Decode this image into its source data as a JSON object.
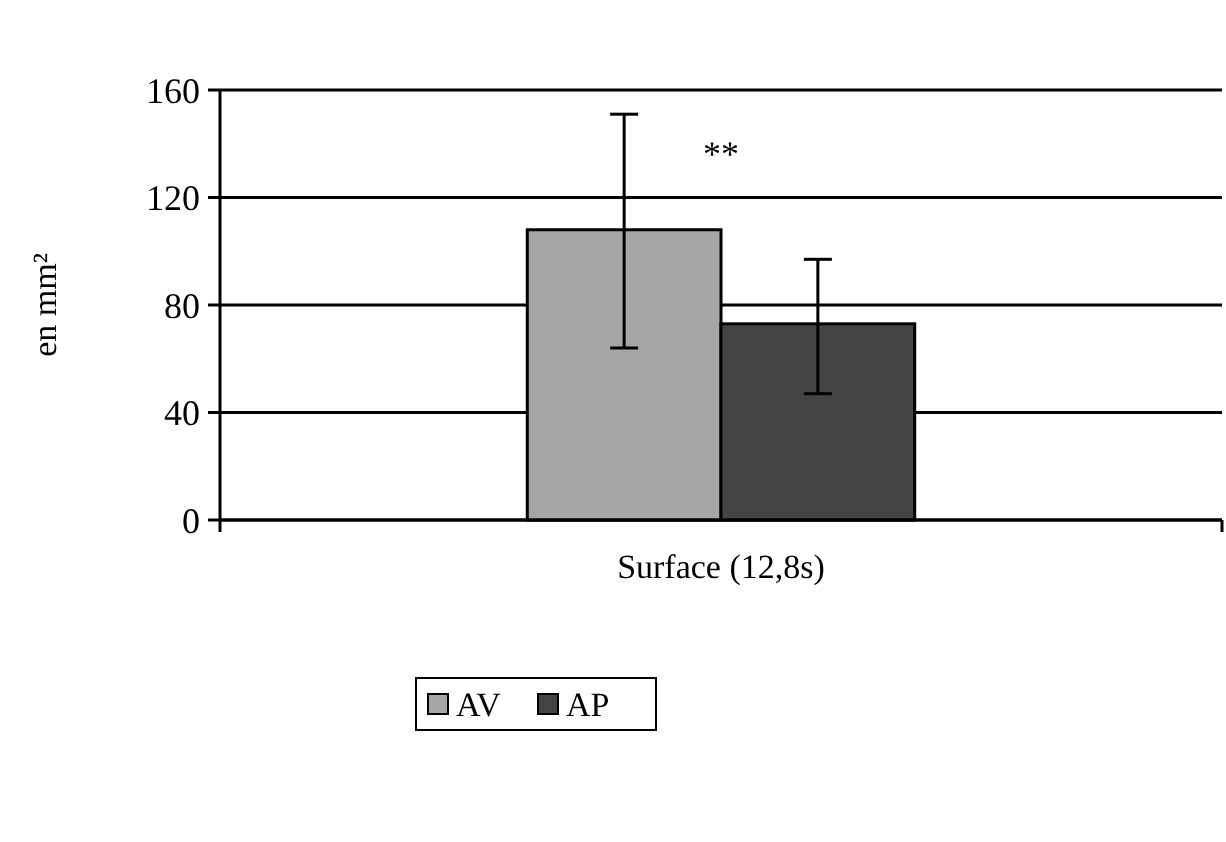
{
  "chart_data": {
    "type": "bar",
    "ylabel": "en mm²",
    "categories": [
      "Surface (12,8s)"
    ],
    "series": [
      {
        "name": "AV",
        "color": "#a6a6a6",
        "values": [
          108
        ],
        "errors": [
          [
            64,
            151
          ]
        ]
      },
      {
        "name": "AP",
        "color": "#444444",
        "values": [
          73
        ],
        "errors": [
          [
            47,
            97
          ]
        ]
      }
    ],
    "ylim": [
      0,
      160
    ],
    "yticks": [
      0,
      40,
      80,
      120,
      160
    ],
    "grid": "y",
    "legend": "bottom",
    "annotations": [
      "**"
    ]
  }
}
